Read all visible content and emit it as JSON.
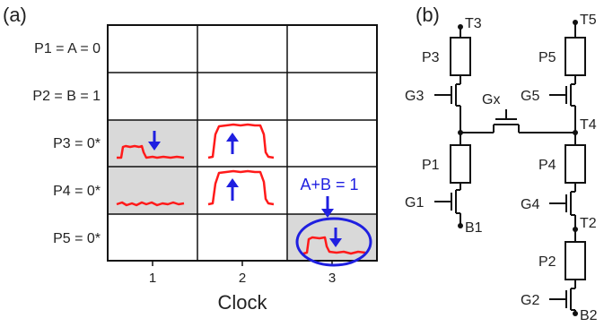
{
  "panels": {
    "a": "(a)",
    "b": "(b)"
  },
  "grid": {
    "rows": [
      "P1 = A = 0",
      "P2 = B = 1",
      "P3 = 0*",
      "P4 = 0*",
      "P5 = 0*"
    ],
    "cols": [
      "1",
      "2",
      "3"
    ],
    "xlabel": "Clock",
    "annotation": "A+B = 1",
    "shaded_cells": [
      [
        2,
        0
      ],
      [
        3,
        0
      ],
      [
        4,
        2
      ]
    ],
    "colors": {
      "trace": "#ff1a1a",
      "arrow": "#1f1fe0",
      "shade": "#d9d9d9",
      "grid": "#111111"
    }
  },
  "circuit": {
    "terminals": [
      "T3",
      "T5",
      "T4",
      "T2",
      "B1",
      "B2"
    ],
    "resistors": [
      "P3",
      "P5",
      "P1",
      "P4",
      "P2"
    ],
    "gates": [
      "G3",
      "G5",
      "Gx",
      "G1",
      "G4",
      "G2"
    ]
  }
}
